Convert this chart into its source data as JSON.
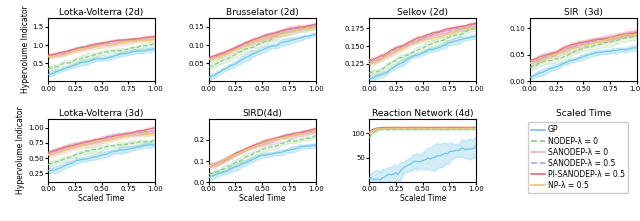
{
  "subplots": [
    {
      "title": "Lotka-Volterra (2d)",
      "row": 0,
      "col": 0,
      "ylim": [
        0.0,
        1.75
      ],
      "yticks": [
        0.5,
        1.0,
        1.5
      ]
    },
    {
      "title": "Brusselator (2d)",
      "row": 0,
      "col": 1,
      "ylim": [
        0.0,
        0.175
      ],
      "yticks": [
        0.05,
        0.1,
        0.15
      ]
    },
    {
      "title": "Selkov (2d)",
      "row": 0,
      "col": 2,
      "ylim": [
        0.1,
        0.19
      ],
      "yticks": [
        0.125,
        0.15,
        0.175
      ]
    },
    {
      "title": "SIR  (3d)",
      "row": 0,
      "col": 3,
      "ylim": [
        0.0,
        0.12
      ],
      "yticks": [
        0.0,
        0.05,
        0.1
      ]
    },
    {
      "title": "Lotka-Volterra (3d)",
      "row": 1,
      "col": 0,
      "ylim": [
        0.1,
        1.15
      ],
      "yticks": [
        0.25,
        0.5,
        0.75,
        1.0
      ]
    },
    {
      "title": "SIRD(4d)",
      "row": 1,
      "col": 1,
      "ylim": [
        0.0,
        0.3
      ],
      "yticks": [
        0.0,
        0.1,
        0.2
      ]
    },
    {
      "title": "Reaction Network (4d)",
      "row": 1,
      "col": 2,
      "ylim": [
        0,
        130
      ],
      "yticks": [
        50,
        100
      ]
    },
    {
      "title": "Scaled Time",
      "row": 1,
      "col": 3,
      "is_legend": true
    }
  ],
  "methods": [
    "GP",
    "NODEP-λ = 0",
    "SANODEP-λ = 0",
    "SANODEP-λ = 0.5",
    "PI-SANODEP-λ = 0.5",
    "NP-λ = 0.5"
  ],
  "linestyles": [
    "-",
    "--",
    "-",
    "--",
    "-",
    "-"
  ],
  "colors": [
    "#6ec6e6",
    "#88cc88",
    "#f0b0d0",
    "#c0a0e0",
    "#e87070",
    "#e8c870"
  ],
  "fill_alphas": [
    0.3,
    0.2,
    0.2,
    0.2,
    0.2,
    0.2
  ],
  "ylabel": "Hypervolume Indicator",
  "xlabel": "Scaled Time"
}
